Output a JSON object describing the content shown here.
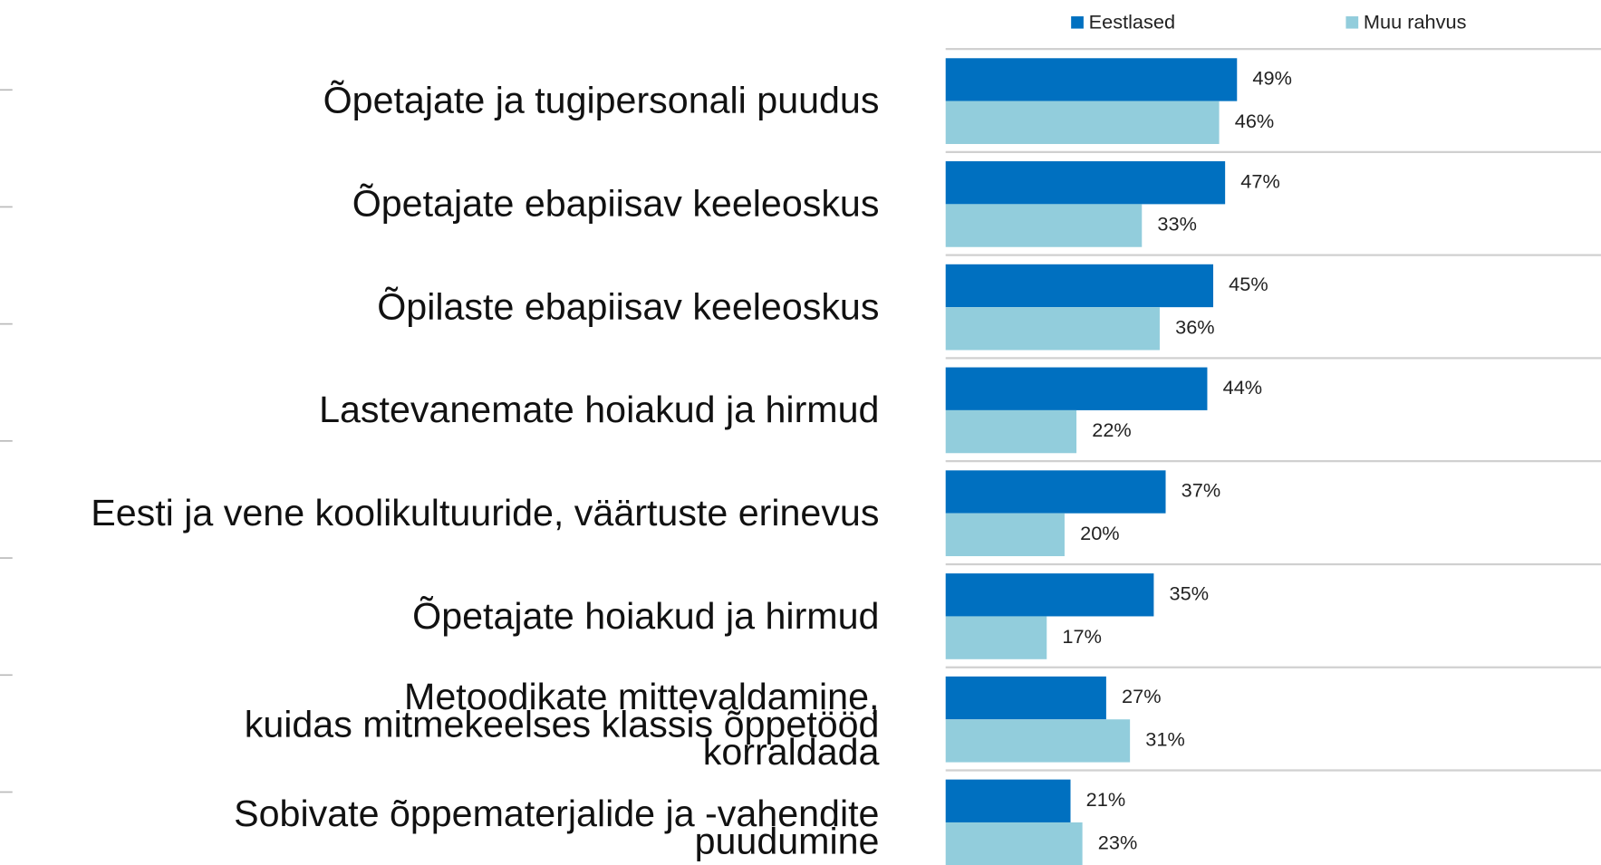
{
  "chart_data": {
    "type": "bar",
    "orientation": "horizontal",
    "categories": [
      "Õpetajate ja tugipersonali puudus",
      "Õpetajate ebapiisav keeleoskus",
      "Õpilaste ebapiisav keeleoskus",
      "Lastevanemate hoiakud ja hirmud",
      "Eesti ja vene koolikultuuride, väärtuste erinevus",
      "Õpetajate hoiakud ja hirmud",
      "Metoodikate mittevaldamine,\nkuidas mitmekeelses klassis õppetööd\nkorraldada",
      "Sobivate õppematerjalide ja -vahendite\npuudumine"
    ],
    "series": [
      {
        "name": "Eestlased",
        "color": "#0070c0",
        "values": [
          49,
          47,
          45,
          44,
          37,
          35,
          27,
          21
        ],
        "value_labels": [
          "49%",
          "47%",
          "45%",
          "44%",
          "37%",
          "35%",
          "27%",
          "21%"
        ]
      },
      {
        "name": "Muu rahvus",
        "color": "#92cddc",
        "values": [
          46,
          33,
          36,
          22,
          20,
          17,
          31,
          23
        ],
        "value_labels": [
          "46%",
          "33%",
          "36%",
          "22%",
          "20%",
          "17%",
          "31%",
          "23%"
        ]
      }
    ],
    "xlim": [
      0,
      100
    ],
    "legend": "top"
  }
}
